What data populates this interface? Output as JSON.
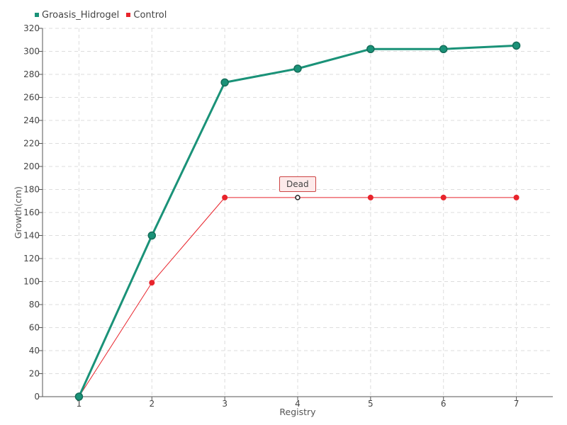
{
  "chart_data": {
    "type": "line",
    "xlabel": "Registry",
    "ylabel": "Growth(cm)",
    "x": [
      1,
      2,
      3,
      4,
      5,
      6,
      7
    ],
    "xlim": [
      0.5,
      7.5
    ],
    "ylim": [
      0,
      320
    ],
    "ytick_step": 20,
    "grid": true,
    "legend_position": "top-left",
    "series": [
      {
        "name": "Groasis_Hidrogel",
        "color": "#1a9278",
        "values": [
          0,
          140,
          273,
          285,
          302,
          302,
          305
        ]
      },
      {
        "name": "Control",
        "color": "#e8242c",
        "values": [
          0,
          99,
          173,
          173,
          173,
          173,
          173
        ]
      }
    ],
    "annotations": [
      {
        "text": "Dead",
        "series": "Control",
        "x": 4,
        "y": 173
      }
    ]
  }
}
